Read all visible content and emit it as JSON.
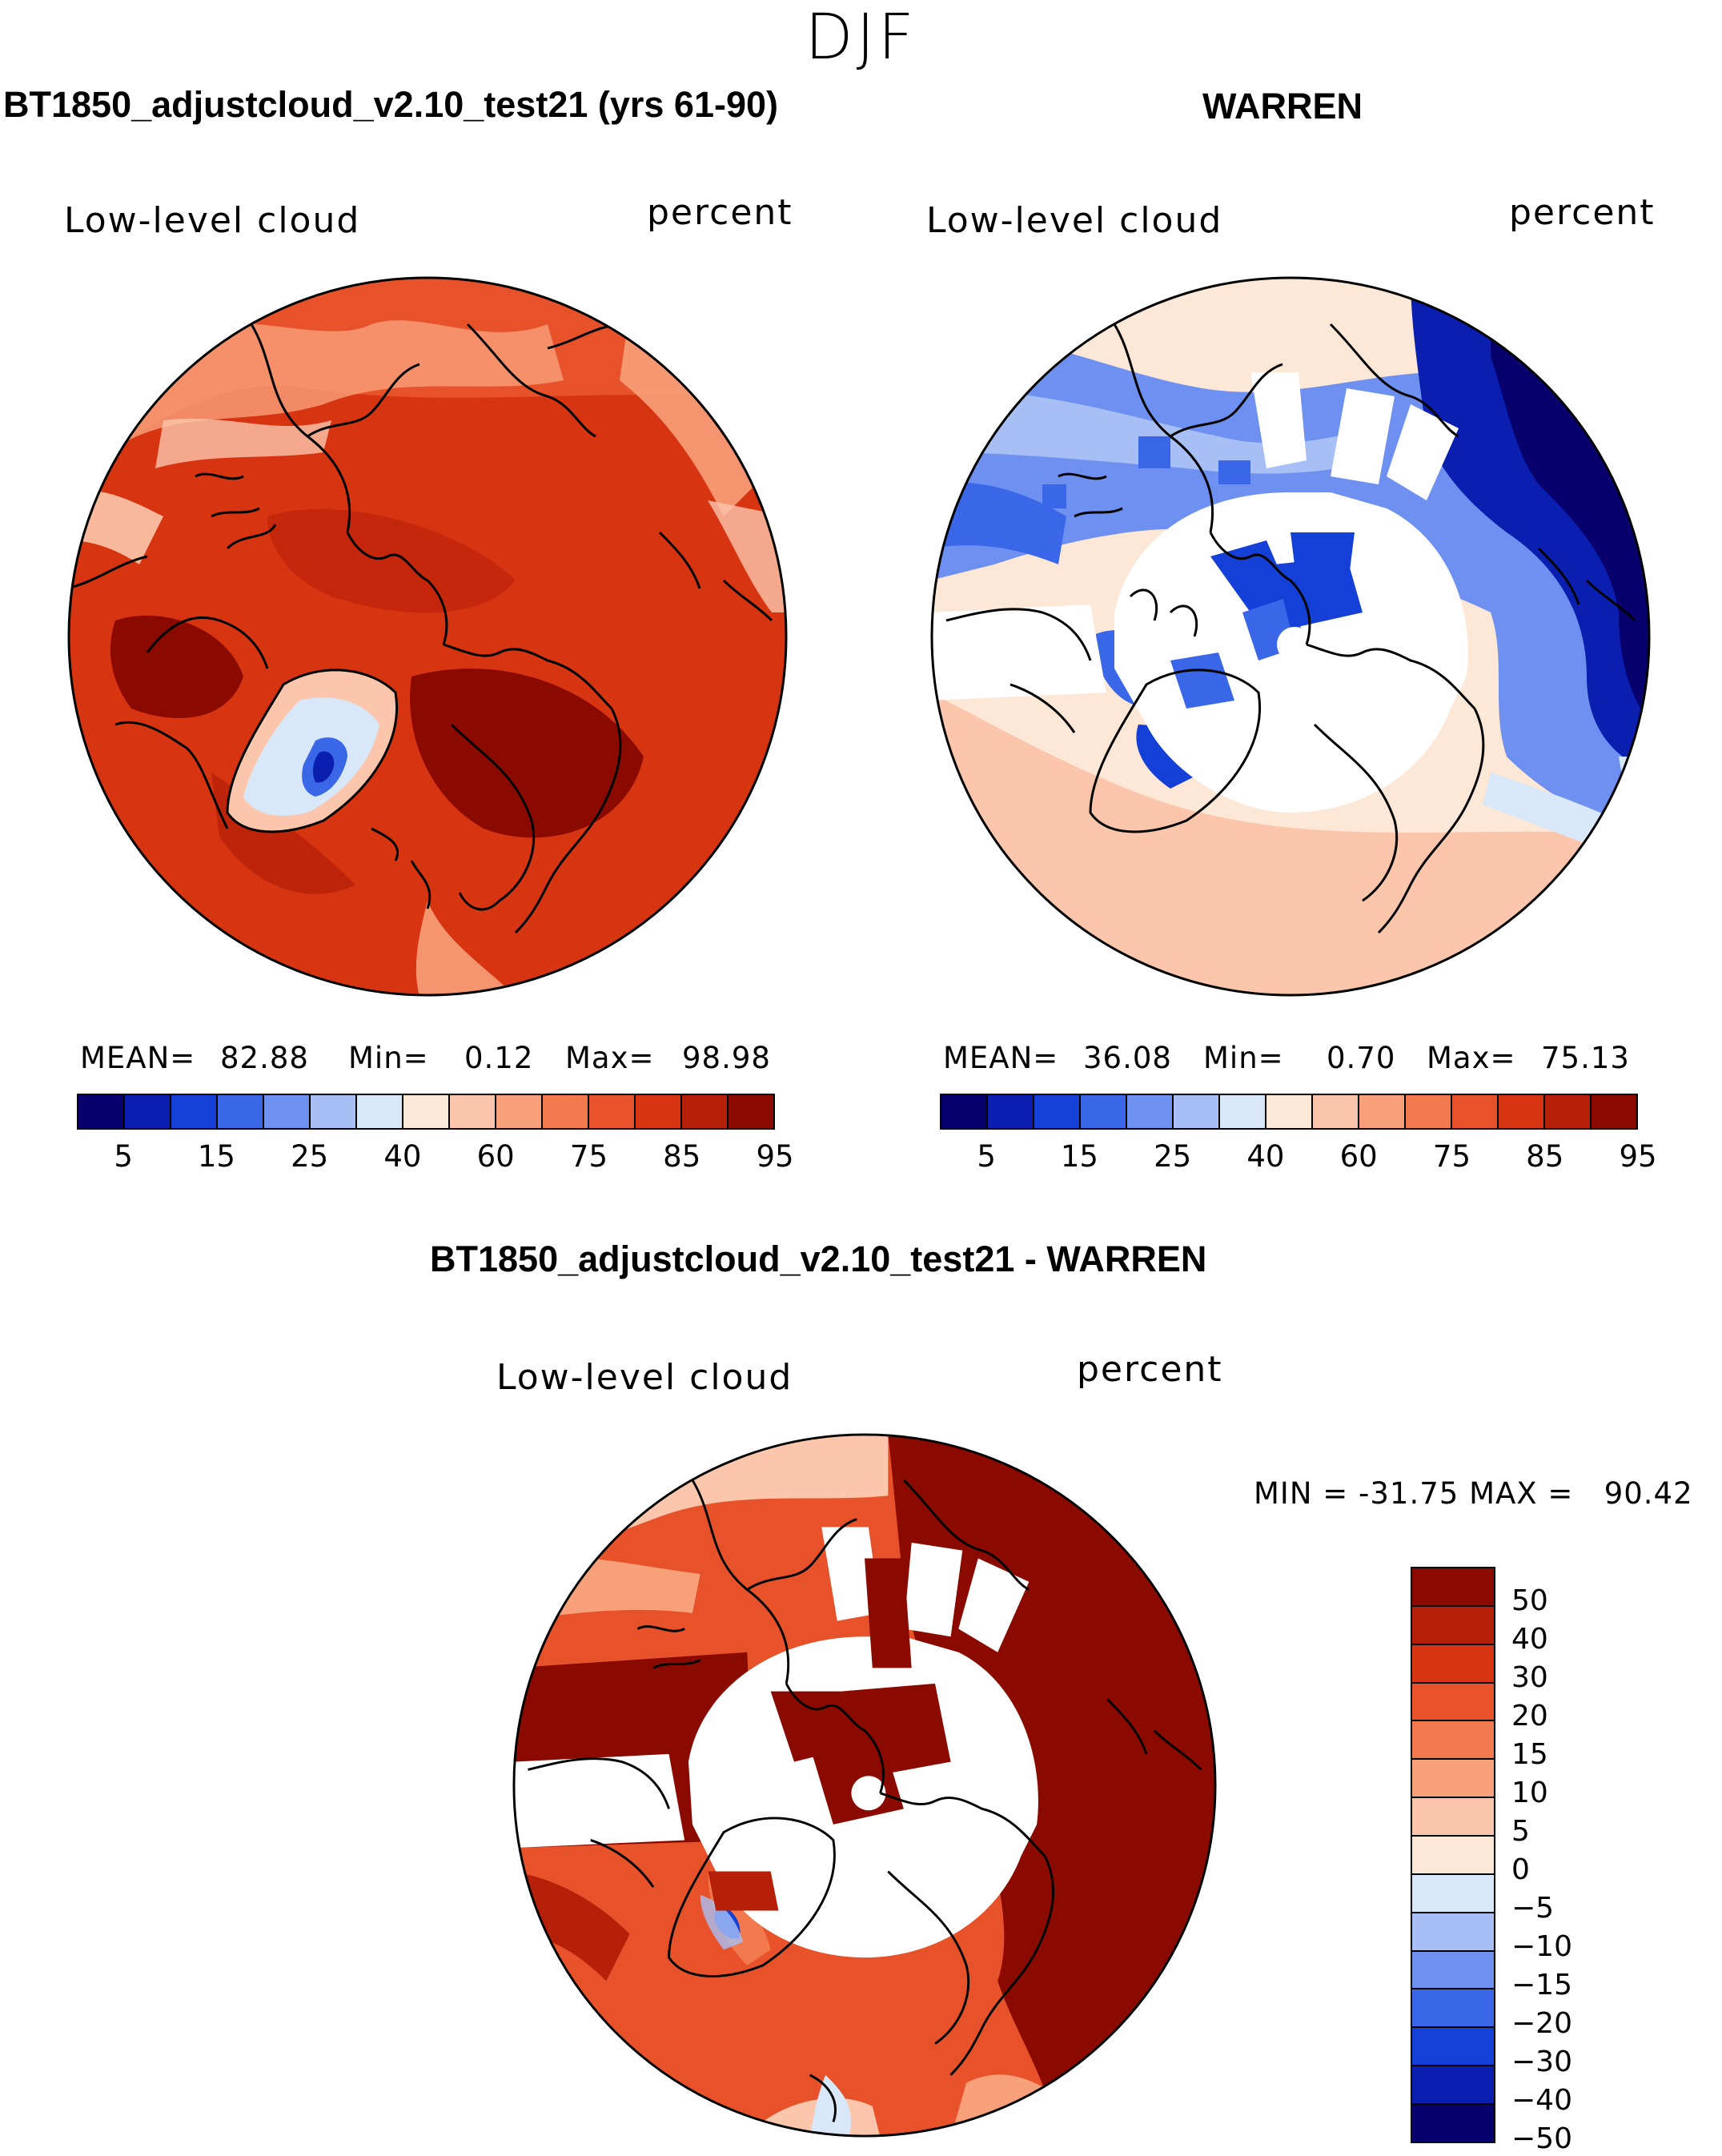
{
  "figure": {
    "season": "DJF"
  },
  "panels": {
    "model": {
      "title": "BT1850_adjustcloud_v2.10_test21 (yrs 61-90)",
      "variable": "Low-level cloud",
      "units": "percent",
      "stats": {
        "mean_label": "MEAN=",
        "mean": "82.88",
        "min_label": "Min=",
        "min": "0.12",
        "max_label": "Max=",
        "max": "98.98"
      }
    },
    "obs": {
      "title": "WARREN",
      "variable": "Low-level cloud",
      "units": "percent",
      "stats": {
        "mean_label": "MEAN=",
        "mean": "36.08",
        "min_label": "Min=",
        "min": "0.70",
        "max_label": "Max=",
        "max": "75.13"
      }
    },
    "diff": {
      "title": "BT1850_adjustcloud_v2.10_test21 - WARREN",
      "variable": "Low-level cloud",
      "units": "percent",
      "minmax": "MIN = -31.75 MAX =   90.42"
    }
  },
  "colorbars": {
    "abs": {
      "tick_labels": [
        "5",
        "15",
        "25",
        "40",
        "60",
        "75",
        "85",
        "95"
      ],
      "colors": [
        "#08006d",
        "#0a1fb0",
        "#1540d8",
        "#3a66e8",
        "#6e90f0",
        "#a7bff5",
        "#d8e8f8",
        "#fde7d6",
        "#fbc6ac",
        "#f7a07a",
        "#f2784e",
        "#e8522a",
        "#d73412",
        "#b72008",
        "#8b0a00"
      ]
    },
    "diff": {
      "tick_labels": [
        "50",
        "40",
        "30",
        "20",
        "15",
        "10",
        "5",
        "0",
        "-5",
        "-10",
        "-15",
        "-20",
        "-30",
        "-40",
        "-50"
      ],
      "colors": [
        "#8b0a00",
        "#b72008",
        "#d73412",
        "#e8522a",
        "#f2784e",
        "#f7a07a",
        "#fbc6ac",
        "#fde7d6",
        "#d8e8f8",
        "#a7bff5",
        "#6e90f0",
        "#3a66e8",
        "#1540d8",
        "#0a1fb0",
        "#08006d"
      ]
    }
  }
}
